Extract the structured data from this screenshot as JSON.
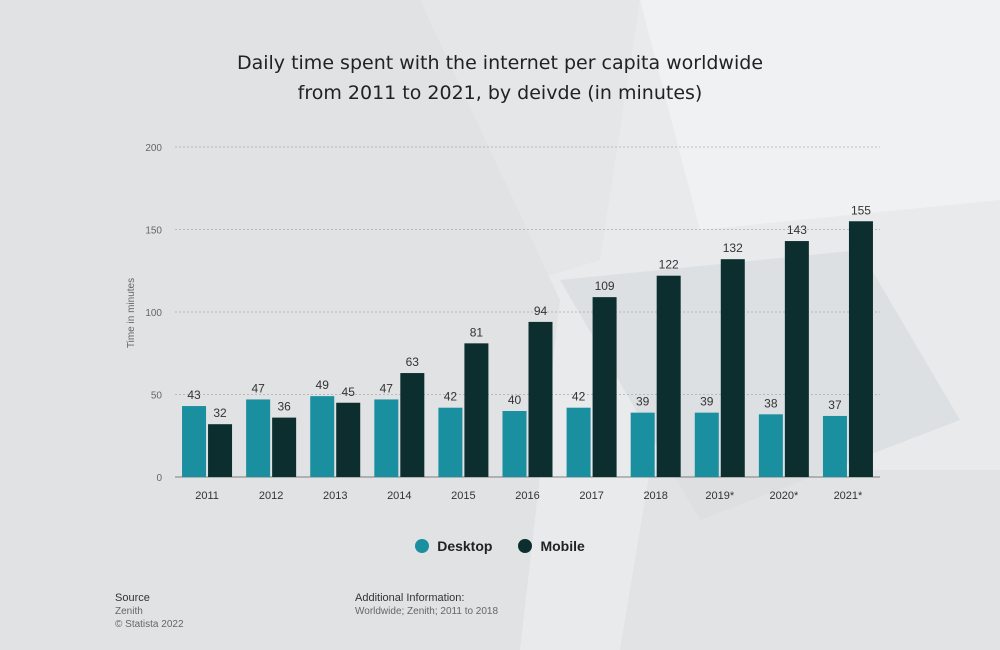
{
  "title_line1": "Daily time spent with the internet per capita worldwide",
  "title_line2": "from 2011 to 2021, by deivde (in minutes)",
  "source": {
    "heading": "Source",
    "line1": "Zenith",
    "line2": "© Statista 2022"
  },
  "additional": {
    "heading": "Additional Information:",
    "text": "Worldwide; Zenith; 2011 to 2018"
  },
  "colors": {
    "desktop": "#1a8fa0",
    "mobile": "#0d2e2f"
  },
  "chart_data": {
    "type": "bar",
    "categories": [
      "2011",
      "2012",
      "2013",
      "2014",
      "2015",
      "2016",
      "2017",
      "2018",
      "2019*",
      "2020*",
      "2021*"
    ],
    "series": [
      {
        "name": "Desktop",
        "values": [
          43,
          47,
          49,
          47,
          42,
          40,
          42,
          39,
          39,
          38,
          37
        ]
      },
      {
        "name": "Mobile",
        "values": [
          32,
          36,
          45,
          63,
          81,
          94,
          109,
          122,
          132,
          143,
          155
        ]
      }
    ],
    "ylabel": "Time in minutes",
    "ylim": [
      0,
      200
    ],
    "yticks": [
      0,
      50,
      100,
      150,
      200
    ],
    "grid": true,
    "legend": "bottom-center"
  }
}
